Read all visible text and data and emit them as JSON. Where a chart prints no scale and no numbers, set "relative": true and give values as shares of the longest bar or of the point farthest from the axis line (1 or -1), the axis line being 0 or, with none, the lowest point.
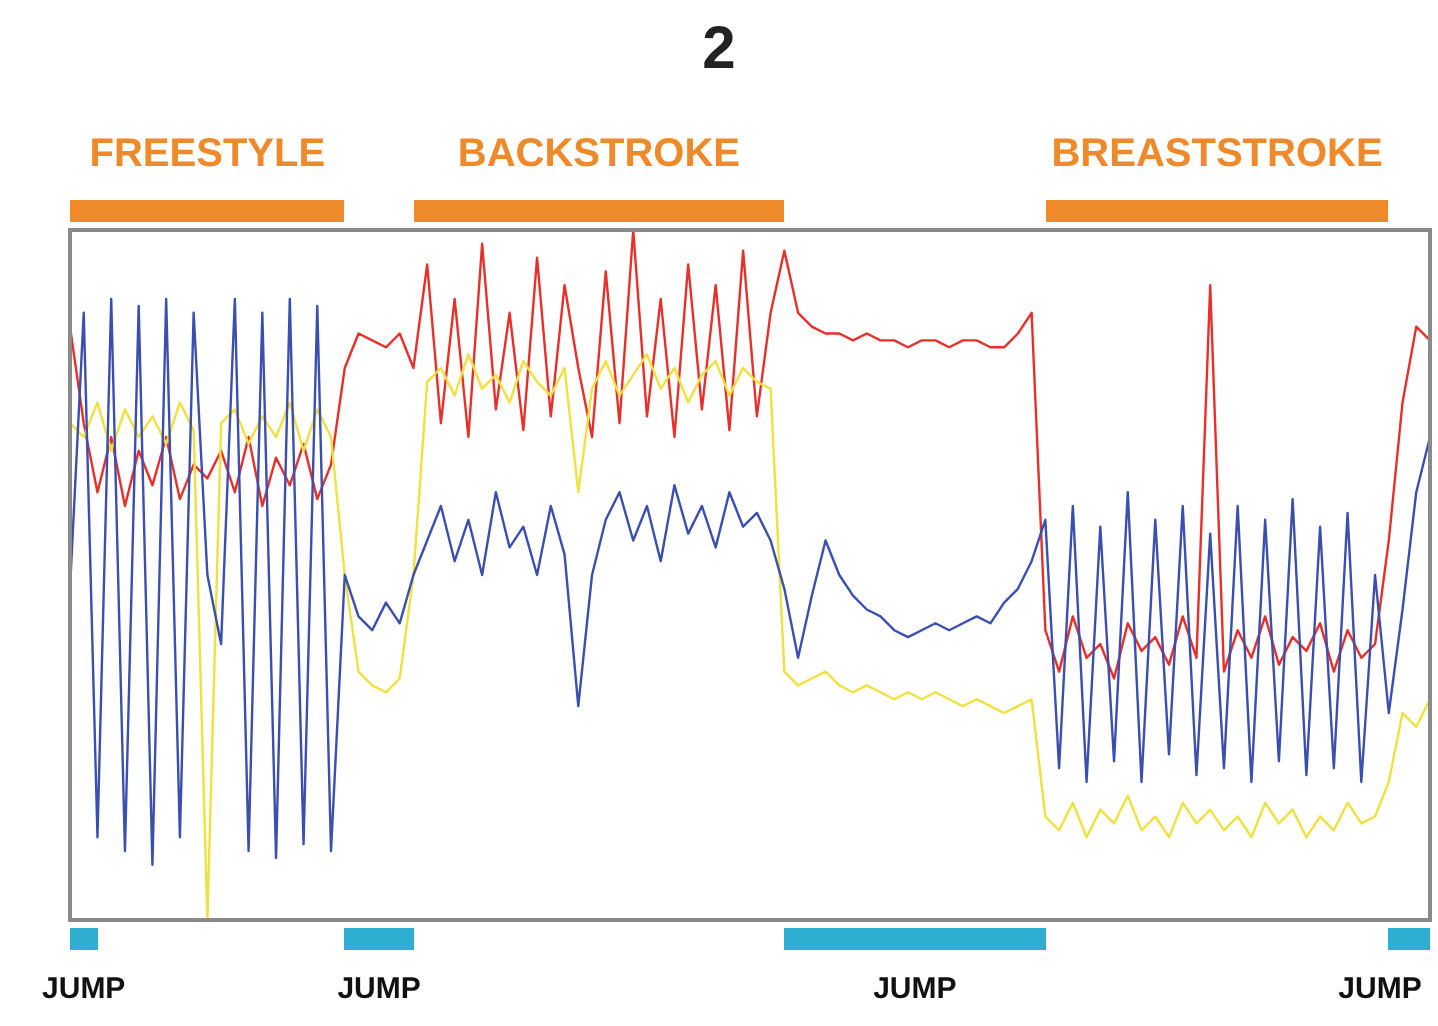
{
  "chart_data": {
    "type": "line",
    "title": "2",
    "relative": true,
    "legend": false,
    "marker": "none",
    "categories": [
      null,
      null,
      null,
      null,
      null,
      null,
      null,
      null,
      null,
      null,
      null,
      null,
      null,
      null,
      null,
      null,
      null,
      null,
      null,
      null,
      null,
      null,
      null,
      null,
      null,
      null,
      null,
      null,
      null,
      null,
      null,
      null,
      null,
      null,
      null,
      null,
      null,
      null,
      null,
      null,
      null,
      null,
      null,
      null,
      null,
      null,
      null,
      null,
      null,
      null,
      null,
      null,
      null,
      null,
      null,
      null,
      null,
      null,
      null,
      null,
      null,
      null,
      null,
      null,
      null,
      null,
      null,
      null,
      null,
      null,
      null,
      null,
      null,
      null,
      null,
      null,
      null,
      null,
      null,
      null,
      null,
      null,
      null,
      null,
      null,
      null,
      null,
      null,
      null,
      null,
      null,
      null,
      null,
      null,
      null,
      null,
      null,
      null,
      null,
      null
    ],
    "annotations": [
      "FREESTYLE",
      "BACKSTROKE",
      "BREASTSTROKE",
      "JUMP",
      "JUMP",
      "JUMP",
      "JUMP"
    ],
    "series": [
      {
        "color": "#3a4fb0",
        "values": [
          0.48,
          0.88,
          0.12,
          0.9,
          0.1,
          0.89,
          0.08,
          0.9,
          0.12,
          0.88,
          0.5,
          0.4,
          0.9,
          0.1,
          0.88,
          0.09,
          0.9,
          0.11,
          0.89,
          0.1,
          0.5,
          0.44,
          0.42,
          0.46,
          0.43,
          0.5,
          0.55,
          0.6,
          0.52,
          0.58,
          0.5,
          0.62,
          0.54,
          0.57,
          0.5,
          0.6,
          0.53,
          0.31,
          0.5,
          0.58,
          0.62,
          0.55,
          0.6,
          0.52,
          0.63,
          0.56,
          0.6,
          0.54,
          0.62,
          0.57,
          0.59,
          0.55,
          0.48,
          0.38,
          0.47,
          0.55,
          0.5,
          0.47,
          0.45,
          0.44,
          0.42,
          0.41,
          0.42,
          0.43,
          0.42,
          0.43,
          0.44,
          0.43,
          0.46,
          0.48,
          0.52,
          0.58,
          0.22,
          0.6,
          0.2,
          0.57,
          0.23,
          0.62,
          0.2,
          0.58,
          0.24,
          0.6,
          0.21,
          0.56,
          0.22,
          0.6,
          0.2,
          0.58,
          0.23,
          0.61,
          0.21,
          0.57,
          0.22,
          0.59,
          0.2,
          0.5,
          0.3,
          0.45,
          0.62,
          0.7
        ]
      },
      {
        "color": "#f0e040",
        "values": [
          0.72,
          0.7,
          0.75,
          0.68,
          0.74,
          0.7,
          0.73,
          0.69,
          0.75,
          0.71,
          0.0,
          0.72,
          0.74,
          0.69,
          0.73,
          0.7,
          0.75,
          0.68,
          0.74,
          0.7,
          0.5,
          0.36,
          0.34,
          0.33,
          0.35,
          0.5,
          0.78,
          0.8,
          0.76,
          0.82,
          0.77,
          0.79,
          0.75,
          0.81,
          0.78,
          0.76,
          0.8,
          0.62,
          0.77,
          0.81,
          0.76,
          0.79,
          0.82,
          0.77,
          0.8,
          0.75,
          0.79,
          0.81,
          0.76,
          0.8,
          0.78,
          0.77,
          0.36,
          0.34,
          0.35,
          0.36,
          0.34,
          0.33,
          0.34,
          0.33,
          0.32,
          0.33,
          0.32,
          0.33,
          0.32,
          0.31,
          0.32,
          0.31,
          0.3,
          0.31,
          0.32,
          0.15,
          0.13,
          0.17,
          0.12,
          0.16,
          0.14,
          0.18,
          0.13,
          0.15,
          0.12,
          0.17,
          0.14,
          0.16,
          0.13,
          0.15,
          0.12,
          0.17,
          0.14,
          0.16,
          0.12,
          0.15,
          0.13,
          0.17,
          0.14,
          0.15,
          0.2,
          0.3,
          0.28,
          0.32
        ]
      },
      {
        "color": "#e8302a",
        "values": [
          0.86,
          0.72,
          0.62,
          0.7,
          0.6,
          0.68,
          0.63,
          0.7,
          0.61,
          0.66,
          0.64,
          0.68,
          0.62,
          0.7,
          0.6,
          0.67,
          0.63,
          0.69,
          0.61,
          0.66,
          0.8,
          0.85,
          0.84,
          0.83,
          0.85,
          0.8,
          0.95,
          0.72,
          0.9,
          0.7,
          0.98,
          0.74,
          0.88,
          0.71,
          0.96,
          0.73,
          0.92,
          0.8,
          0.7,
          0.94,
          0.72,
          1.0,
          0.73,
          0.9,
          0.7,
          0.95,
          0.74,
          0.92,
          0.71,
          0.97,
          0.73,
          0.88,
          0.97,
          0.88,
          0.86,
          0.85,
          0.85,
          0.84,
          0.85,
          0.84,
          0.84,
          0.83,
          0.84,
          0.84,
          0.83,
          0.84,
          0.84,
          0.83,
          0.83,
          0.85,
          0.88,
          0.42,
          0.36,
          0.44,
          0.38,
          0.4,
          0.35,
          0.43,
          0.39,
          0.41,
          0.37,
          0.44,
          0.38,
          0.92,
          0.36,
          0.42,
          0.38,
          0.44,
          0.37,
          0.41,
          0.39,
          0.43,
          0.36,
          0.42,
          0.38,
          0.4,
          0.55,
          0.75,
          0.86,
          0.84
        ]
      }
    ]
  }
}
